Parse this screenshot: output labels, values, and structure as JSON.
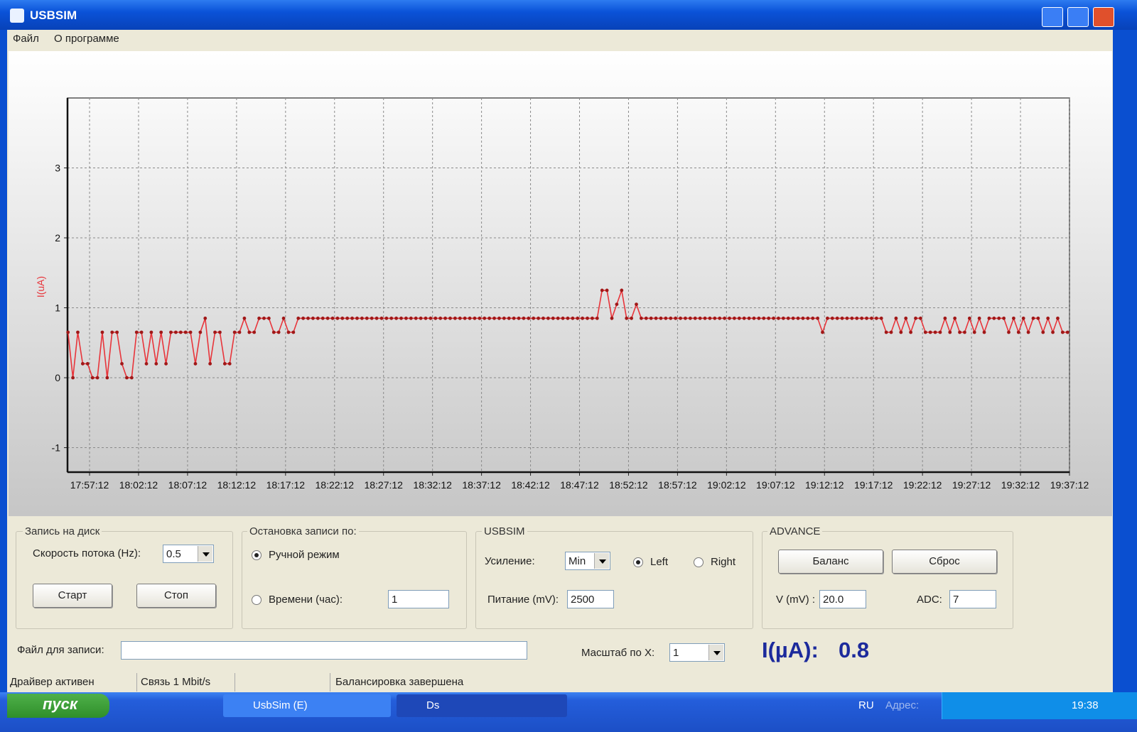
{
  "window": {
    "title": "USBSIM"
  },
  "menu": [
    "Файл",
    "О программе"
  ],
  "chart_data": {
    "type": "line",
    "y_label": "I(uA)",
    "color": "#e8343a",
    "marker_color": "#a01818",
    "grid": true,
    "markers": true,
    "xlim": [
      64497,
      70632
    ],
    "ylim": [
      -1.35,
      4
    ],
    "yticks": [
      -1,
      0,
      1,
      2,
      3
    ],
    "xticks": [
      {
        "value": 64632,
        "label": "17:57:12"
      },
      {
        "value": 64932,
        "label": "18:02:12"
      },
      {
        "value": 65232,
        "label": "18:07:12"
      },
      {
        "value": 65532,
        "label": "18:12:12"
      },
      {
        "value": 65832,
        "label": "18:17:12"
      },
      {
        "value": 66132,
        "label": "18:22:12"
      },
      {
        "value": 66432,
        "label": "18:27:12"
      },
      {
        "value": 66732,
        "label": "18:32:12"
      },
      {
        "value": 67032,
        "label": "18:37:12"
      },
      {
        "value": 67332,
        "label": "18:42:12"
      },
      {
        "value": 67632,
        "label": "18:47:12"
      },
      {
        "value": 67932,
        "label": "18:52:12"
      },
      {
        "value": 68232,
        "label": "18:57:12"
      },
      {
        "value": 68532,
        "label": "19:02:12"
      },
      {
        "value": 68832,
        "label": "19:07:12"
      },
      {
        "value": 69132,
        "label": "19:12:12"
      },
      {
        "value": 69432,
        "label": "19:17:12"
      },
      {
        "value": 69732,
        "label": "19:22:12"
      },
      {
        "value": 70032,
        "label": "19:27:12"
      },
      {
        "value": 70332,
        "label": "19:32:12"
      },
      {
        "value": 70632,
        "label": "19:37:12"
      }
    ],
    "x": [
      64500,
      64530,
      64560,
      64590,
      64620,
      64650,
      64680,
      64710,
      64740,
      64770,
      64800,
      64830,
      64860,
      64890,
      64920,
      64950,
      64980,
      65010,
      65040,
      65070,
      65100,
      65130,
      65160,
      65190,
      65220,
      65250,
      65280,
      65310,
      65340,
      65370,
      65400,
      65430,
      65460,
      65490,
      65520,
      65550,
      65580,
      65610,
      65640,
      65670,
      65700,
      65730,
      65760,
      65790,
      65820,
      65850,
      65880,
      65910,
      65940,
      65970,
      66000,
      66030,
      66060,
      66090,
      66120,
      66150,
      66180,
      66210,
      66240,
      66270,
      66300,
      66330,
      66360,
      66390,
      66420,
      66450,
      66480,
      66510,
      66540,
      66570,
      66600,
      66630,
      66660,
      66690,
      66720,
      66750,
      66780,
      66810,
      66840,
      66870,
      66900,
      66930,
      66960,
      66990,
      67020,
      67050,
      67080,
      67110,
      67140,
      67170,
      67200,
      67230,
      67260,
      67290,
      67320,
      67350,
      67380,
      67410,
      67440,
      67470,
      67500,
      67530,
      67560,
      67590,
      67620,
      67650,
      67680,
      67710,
      67740,
      67770,
      67800,
      67830,
      67860,
      67890,
      67920,
      67950,
      67980,
      68010,
      68040,
      68070,
      68100,
      68130,
      68160,
      68190,
      68220,
      68250,
      68280,
      68310,
      68340,
      68370,
      68400,
      68430,
      68460,
      68490,
      68520,
      68550,
      68580,
      68610,
      68640,
      68670,
      68700,
      68730,
      68760,
      68790,
      68820,
      68850,
      68880,
      68910,
      68940,
      68970,
      69000,
      69030,
      69060,
      69090,
      69120,
      69150,
      69180,
      69210,
      69240,
      69270,
      69300,
      69330,
      69360,
      69390,
      69420,
      69450,
      69480,
      69510,
      69540,
      69570,
      69600,
      69630,
      69660,
      69690,
      69720,
      69750,
      69780,
      69810,
      69840,
      69870,
      69900,
      69930,
      69960,
      69990,
      70020,
      70050,
      70080,
      70110,
      70140,
      70170,
      70200,
      70230,
      70260,
      70290,
      70320,
      70350,
      70380,
      70410,
      70440,
      70470,
      70500,
      70530,
      70560,
      70590,
      70620
    ],
    "values": [
      0.65,
      0,
      0.65,
      0.2,
      0.2,
      0,
      0,
      0.65,
      0,
      0.65,
      0.65,
      0.2,
      0,
      0,
      0.65,
      0.65,
      0.2,
      0.65,
      0.2,
      0.65,
      0.2,
      0.65,
      0.65,
      0.65,
      0.65,
      0.65,
      0.2,
      0.65,
      0.85,
      0.2,
      0.65,
      0.65,
      0.2,
      0.2,
      0.65,
      0.65,
      0.85,
      0.65,
      0.65,
      0.85,
      0.85,
      0.85,
      0.65,
      0.65,
      0.85,
      0.65,
      0.65,
      0.85,
      0.85,
      0.85,
      0.85,
      0.85,
      0.85,
      0.85,
      0.85,
      0.85,
      0.85,
      0.85,
      0.85,
      0.85,
      0.85,
      0.85,
      0.85,
      0.85,
      0.85,
      0.85,
      0.85,
      0.85,
      0.85,
      0.85,
      0.85,
      0.85,
      0.85,
      0.85,
      0.85,
      0.85,
      0.85,
      0.85,
      0.85,
      0.85,
      0.85,
      0.85,
      0.85,
      0.85,
      0.85,
      0.85,
      0.85,
      0.85,
      0.85,
      0.85,
      0.85,
      0.85,
      0.85,
      0.85,
      0.85,
      0.85,
      0.85,
      0.85,
      0.85,
      0.85,
      0.85,
      0.85,
      0.85,
      0.85,
      0.85,
      0.85,
      0.85,
      0.85,
      0.85,
      1.25,
      1.25,
      0.85,
      1.05,
      1.25,
      0.85,
      0.85,
      1.05,
      0.85,
      0.85,
      0.85,
      0.85,
      0.85,
      0.85,
      0.85,
      0.85,
      0.85,
      0.85,
      0.85,
      0.85,
      0.85,
      0.85,
      0.85,
      0.85,
      0.85,
      0.85,
      0.85,
      0.85,
      0.85,
      0.85,
      0.85,
      0.85,
      0.85,
      0.85,
      0.85,
      0.85,
      0.85,
      0.85,
      0.85,
      0.85,
      0.85,
      0.85,
      0.85,
      0.85,
      0.85,
      0.65,
      0.85,
      0.85,
      0.85,
      0.85,
      0.85,
      0.85,
      0.85,
      0.85,
      0.85,
      0.85,
      0.85,
      0.85,
      0.65,
      0.65,
      0.85,
      0.65,
      0.85,
      0.65,
      0.85,
      0.85,
      0.65,
      0.65,
      0.65,
      0.65,
      0.85,
      0.65,
      0.85,
      0.65,
      0.65,
      0.85,
      0.65,
      0.85,
      0.65,
      0.85,
      0.85,
      0.85,
      0.85,
      0.65,
      0.85,
      0.65,
      0.85,
      0.65,
      0.85,
      0.85,
      0.65,
      0.85,
      0.65,
      0.85,
      0.65,
      0.65
    ]
  },
  "panels": {
    "record": {
      "title": "Запись на диск",
      "rate_label": "Скорость потока (Hz):",
      "rate": 0.5,
      "start": "Старт",
      "stop": "Стоп"
    },
    "stop": {
      "title": "Остановка записи по:",
      "manual": "Ручной режим",
      "manual_selected": true,
      "time": "Времени (час):",
      "time_selected": false,
      "hours": 1
    },
    "usbsim": {
      "title": "USBSIM",
      "gain_label": "Усиление:",
      "gain": "Min",
      "left": "Left",
      "left_selected": true,
      "right": "Right",
      "right_selected": false,
      "power_label": "Питание (mV):",
      "power": 2500
    },
    "advance": {
      "title": "ADVANCE",
      "balance": "Баланс",
      "reset": "Сброс",
      "v_label": "V (mV) :",
      "v": "20.0",
      "adc_label": "ADC:",
      "adc": 7
    }
  },
  "file_label": "Файл для записи:",
  "scale_label": "Масштаб по X:",
  "scale": 1,
  "current_label": "I(µA):",
  "current": 0.8,
  "status_bar": [
    "Драйвер активен",
    "Связь 1 Mbit/s",
    "Балансировка завершена"
  ],
  "taskbar": {
    "start": "пуск",
    "tasks": [
      "UsbSim (E)",
      "Ds"
    ],
    "lang": "RU",
    "address": "Адрес:",
    "clock": "19:38"
  }
}
